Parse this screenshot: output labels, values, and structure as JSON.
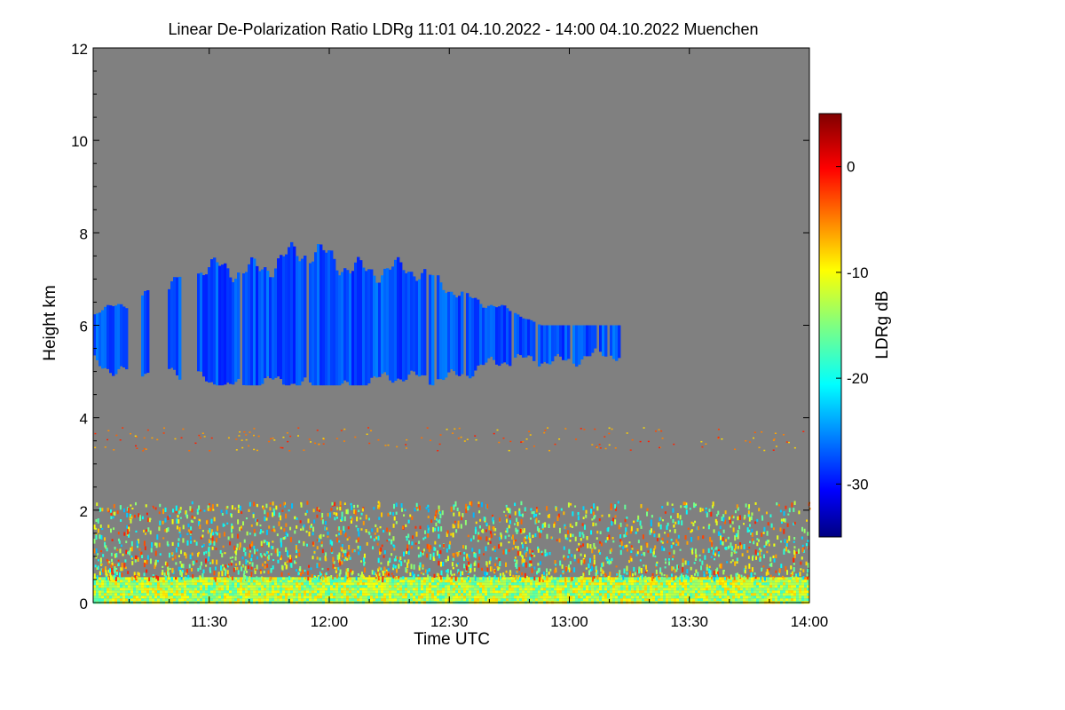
{
  "chart_data": {
    "type": "heatmap",
    "title": "Linear De-Polarization Ratio LDRg   11:01 04.10.2022 - 14:00 04.10.2022 Muenchen",
    "xlabel": "Time UTC",
    "ylabel": "Height km",
    "x_range_minutes": [
      661,
      840
    ],
    "x_ticks": [
      {
        "minute": 690,
        "label": "11:30"
      },
      {
        "minute": 720,
        "label": "12:00"
      },
      {
        "minute": 750,
        "label": "12:30"
      },
      {
        "minute": 780,
        "label": "13:00"
      },
      {
        "minute": 810,
        "label": "13:30"
      },
      {
        "minute": 840,
        "label": "14:00"
      }
    ],
    "ylim": [
      0,
      12
    ],
    "y_ticks": [
      0,
      2,
      4,
      6,
      8,
      10,
      12
    ],
    "colorbar": {
      "label": "LDRg dB",
      "range": [
        -35,
        5
      ],
      "ticks": [
        {
          "value": 0,
          "label": "0"
        },
        {
          "value": -10,
          "label": "-10"
        },
        {
          "value": -20,
          "label": "-20"
        },
        {
          "value": -30,
          "label": "-30"
        }
      ]
    },
    "background_color": "#808080",
    "features": [
      {
        "name": "ice-cloud",
        "start_minute": 661,
        "end_minute": 796,
        "base_km": 4.7,
        "top_km": 7.9,
        "ldr_db": -27
      },
      {
        "name": "aerosol-layer",
        "start_minute": 661,
        "end_minute": 840,
        "base_km": 0.0,
        "top_km": 2.2,
        "ldr_db": -12
      },
      {
        "name": "residual-layer",
        "start_minute": 661,
        "end_minute": 840,
        "base_km": 3.3,
        "top_km": 3.8,
        "ldr_db": -5
      }
    ]
  }
}
